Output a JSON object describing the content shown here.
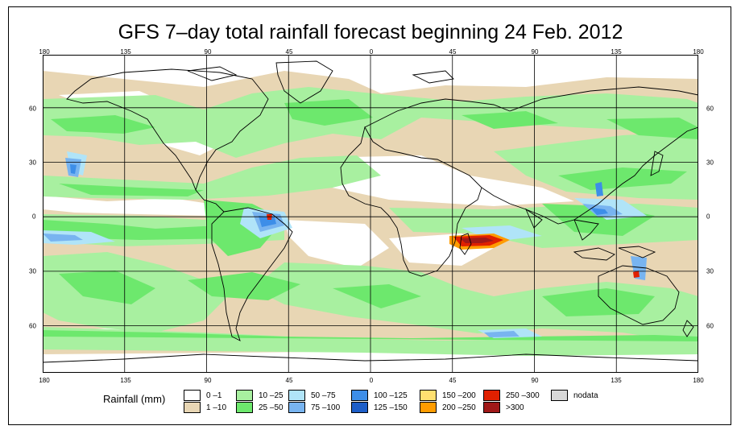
{
  "title": "GFS 7–day total rainfall forecast beginning 24 Feb. 2012",
  "axes": {
    "lon_ticks": [
      "180",
      "135",
      "90",
      "45",
      "0",
      "45",
      "90",
      "135",
      "180"
    ],
    "lat_ticks": [
      "60",
      "30",
      "0",
      "30",
      "60"
    ]
  },
  "legend": {
    "title": "Rainfall (mm)",
    "items": [
      {
        "label": "0 –1",
        "color": "#ffffff"
      },
      {
        "label": "1 –10",
        "color": "#e8d6b4"
      },
      {
        "label": "10 –25",
        "color": "#a8f0a0"
      },
      {
        "label": "25 –50",
        "color": "#6de86d"
      },
      {
        "label": "50 –75",
        "color": "#b0e4f8"
      },
      {
        "label": "75 –100",
        "color": "#78b4f0"
      },
      {
        "label": "100 –125",
        "color": "#3d8ee8"
      },
      {
        "label": "125 –150",
        "color": "#1d5ec8"
      },
      {
        "label": "150 –200",
        "color": "#ffe070"
      },
      {
        "label": "200 –250",
        "color": "#ff9c00"
      },
      {
        "label": "250 –300",
        "color": "#e02000"
      },
      {
        "label": ">300",
        "color": "#a01818"
      },
      {
        "label": "nodata",
        "color": "#d8d8d8"
      }
    ]
  }
}
